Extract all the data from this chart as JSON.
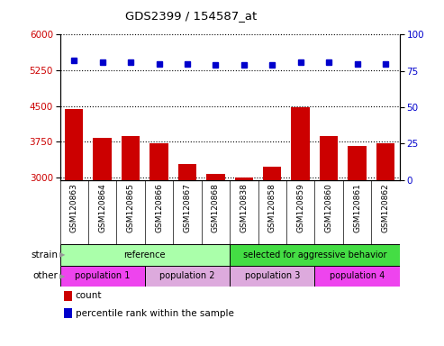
{
  "title": "GDS2399 / 154587_at",
  "samples": [
    "GSM120863",
    "GSM120864",
    "GSM120865",
    "GSM120866",
    "GSM120867",
    "GSM120868",
    "GSM120838",
    "GSM120858",
    "GSM120859",
    "GSM120860",
    "GSM120861",
    "GSM120862"
  ],
  "counts": [
    4430,
    3830,
    3870,
    3720,
    3280,
    3080,
    3010,
    3230,
    4470,
    3870,
    3660,
    3720
  ],
  "percentile_ranks": [
    82,
    81,
    81,
    80,
    80,
    79,
    79,
    79,
    81,
    81,
    80,
    80
  ],
  "ylim_left": [
    2950,
    6000
  ],
  "ylim_right": [
    0,
    100
  ],
  "yticks_left": [
    3000,
    3750,
    4500,
    5250,
    6000
  ],
  "yticks_right": [
    0,
    25,
    50,
    75,
    100
  ],
  "bar_color": "#cc0000",
  "dot_color": "#0000cc",
  "strain_groups": [
    {
      "label": "reference",
      "start": 0,
      "end": 6,
      "color": "#aaffaa"
    },
    {
      "label": "selected for aggressive behavior",
      "start": 6,
      "end": 12,
      "color": "#44dd44"
    }
  ],
  "other_groups": [
    {
      "label": "population 1",
      "start": 0,
      "end": 3,
      "color": "#ee44ee"
    },
    {
      "label": "population 2",
      "start": 3,
      "end": 6,
      "color": "#ddaadd"
    },
    {
      "label": "population 3",
      "start": 6,
      "end": 9,
      "color": "#ddaadd"
    },
    {
      "label": "population 4",
      "start": 9,
      "end": 12,
      "color": "#ee44ee"
    }
  ],
  "bg_color": "#d8d8d8",
  "plot_bg": "#ffffff",
  "legend_count_color": "#cc0000",
  "legend_pct_color": "#0000cc"
}
